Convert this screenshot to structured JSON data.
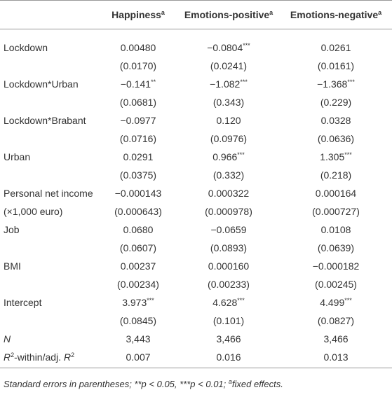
{
  "table": {
    "header": [
      {
        "text": "Happiness",
        "sup": "a"
      },
      {
        "text": "Emotions-positive",
        "sup": "a"
      },
      {
        "text": "Emotions-negative",
        "sup": "a"
      }
    ],
    "rows": [
      {
        "label": "Lockdown",
        "cells": [
          {
            "text": "0.00480"
          },
          {
            "text": "−0.0804",
            "sup": "***"
          },
          {
            "text": "0.0261"
          }
        ]
      },
      {
        "cells": [
          {
            "text": "(0.0170)"
          },
          {
            "text": "(0.0241)"
          },
          {
            "text": "(0.0161)"
          }
        ]
      },
      {
        "label": "Lockdown*Urban",
        "cells": [
          {
            "text": "−0.141",
            "sup": "**"
          },
          {
            "text": "−1.082",
            "sup": "***"
          },
          {
            "text": "−1.368",
            "sup": "***"
          }
        ]
      },
      {
        "cells": [
          {
            "text": "(0.0681)"
          },
          {
            "text": "(0.343)"
          },
          {
            "text": "(0.229)"
          }
        ]
      },
      {
        "label": "Lockdown*Brabant",
        "cells": [
          {
            "text": "−0.0977"
          },
          {
            "text": "0.120"
          },
          {
            "text": "0.0328"
          }
        ]
      },
      {
        "cells": [
          {
            "text": "(0.0716)"
          },
          {
            "text": "(0.0976)"
          },
          {
            "text": "(0.0636)"
          }
        ]
      },
      {
        "label": "Urban",
        "cells": [
          {
            "text": "0.0291"
          },
          {
            "text": "0.966",
            "sup": "***"
          },
          {
            "text": "1.305",
            "sup": "***"
          }
        ]
      },
      {
        "cells": [
          {
            "text": "(0.0375)"
          },
          {
            "text": "(0.332)"
          },
          {
            "text": "(0.218)"
          }
        ]
      },
      {
        "label": "Personal net income",
        "cells": [
          {
            "text": "−0.000143"
          },
          {
            "text": "0.000322"
          },
          {
            "text": "0.000164"
          }
        ]
      },
      {
        "label": "(×1,000 euro)",
        "cells": [
          {
            "text": "(0.000643)"
          },
          {
            "text": "(0.000978)"
          },
          {
            "text": "(0.000727)"
          }
        ]
      },
      {
        "label": "Job",
        "cells": [
          {
            "text": "0.0680"
          },
          {
            "text": "−0.0659"
          },
          {
            "text": "0.0108"
          }
        ]
      },
      {
        "cells": [
          {
            "text": "(0.0607)"
          },
          {
            "text": "(0.0893)"
          },
          {
            "text": "(0.0639)"
          }
        ]
      },
      {
        "label": "BMI",
        "cells": [
          {
            "text": "0.00237"
          },
          {
            "text": "0.000160"
          },
          {
            "text": "−0.000182"
          }
        ]
      },
      {
        "cells": [
          {
            "text": "(0.00234)"
          },
          {
            "text": "(0.00233)"
          },
          {
            "text": "(0.00245)"
          }
        ]
      },
      {
        "label": "Intercept",
        "cells": [
          {
            "text": "3.973",
            "sup": "***"
          },
          {
            "text": "4.628",
            "sup": "***"
          },
          {
            "text": "4.499",
            "sup": "***"
          }
        ]
      },
      {
        "cells": [
          {
            "text": "(0.0845)"
          },
          {
            "text": "(0.101)"
          },
          {
            "text": "(0.0827)"
          }
        ]
      },
      {
        "label_parts": [
          {
            "text": "N",
            "style": "italic"
          }
        ],
        "cells": [
          {
            "text": "3,443"
          },
          {
            "text": "3,466"
          },
          {
            "text": "3,466"
          }
        ]
      },
      {
        "label_parts": [
          {
            "text": "R",
            "style": "italic"
          },
          {
            "text": "2",
            "style": "sup"
          },
          {
            "text": "-within/adj. "
          },
          {
            "text": "R",
            "style": "italic"
          },
          {
            "text": "2",
            "style": "sup"
          }
        ],
        "cells": [
          {
            "text": "0.007"
          },
          {
            "text": "0.016"
          },
          {
            "text": "0.013"
          }
        ]
      }
    ],
    "footnote": {
      "text": "Standard errors in parentheses; **p < 0.05, ***p < 0.01; ",
      "sup": "a",
      "after": "fixed effects."
    }
  }
}
